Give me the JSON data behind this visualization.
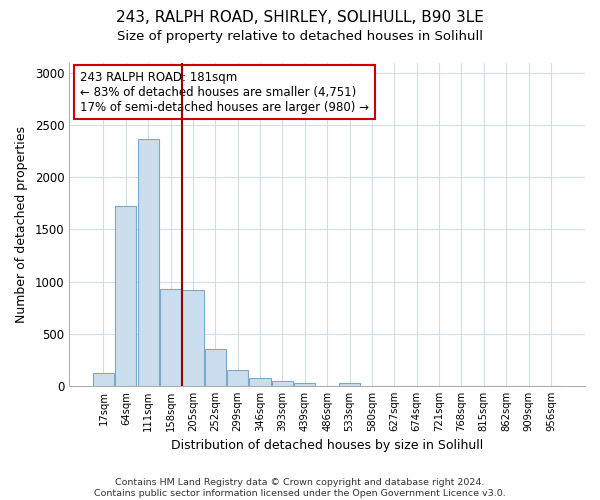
{
  "title_line1": "243, RALPH ROAD, SHIRLEY, SOLIHULL, B90 3LE",
  "title_line2": "Size of property relative to detached houses in Solihull",
  "xlabel": "Distribution of detached houses by size in Solihull",
  "ylabel": "Number of detached properties",
  "bar_color": "#ccdded",
  "bar_edge_color": "#7aaac8",
  "bin_labels": [
    "17sqm",
    "64sqm",
    "111sqm",
    "158sqm",
    "205sqm",
    "252sqm",
    "299sqm",
    "346sqm",
    "393sqm",
    "439sqm",
    "486sqm",
    "533sqm",
    "580sqm",
    "627sqm",
    "674sqm",
    "721sqm",
    "768sqm",
    "815sqm",
    "862sqm",
    "909sqm",
    "956sqm"
  ],
  "bar_heights": [
    120,
    1720,
    2370,
    930,
    920,
    350,
    155,
    80,
    50,
    30,
    0,
    30,
    0,
    0,
    0,
    0,
    0,
    0,
    0,
    0,
    0
  ],
  "red_line_x": 3.5,
  "annotation_text": "243 RALPH ROAD: 181sqm\n← 83% of detached houses are smaller (4,751)\n17% of semi-detached houses are larger (980) →",
  "ylim": [
    0,
    3100
  ],
  "yticks": [
    0,
    500,
    1000,
    1500,
    2000,
    2500,
    3000
  ],
  "footer": "Contains HM Land Registry data © Crown copyright and database right 2024.\nContains public sector information licensed under the Open Government Licence v3.0.",
  "background_color": "#ffffff",
  "plot_background": "#ffffff",
  "grid_color": "#d0dce8"
}
